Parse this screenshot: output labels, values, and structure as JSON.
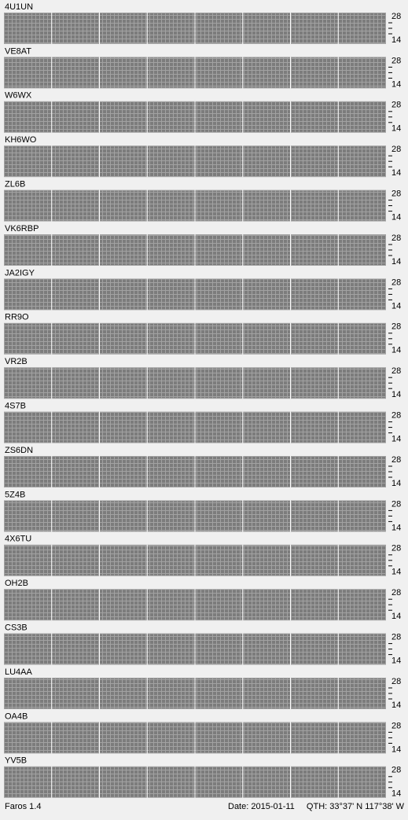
{
  "stations": [
    {
      "name": "4U1UN"
    },
    {
      "name": "VE8AT"
    },
    {
      "name": "W6WX"
    },
    {
      "name": "KH6WO"
    },
    {
      "name": "ZL6B"
    },
    {
      "name": "VK6RBP"
    },
    {
      "name": "JA2IGY"
    },
    {
      "name": "RR9O"
    },
    {
      "name": "VR2B"
    },
    {
      "name": "4S7B"
    },
    {
      "name": "ZS6DN"
    },
    {
      "name": "5Z4B"
    },
    {
      "name": "4X6TU"
    },
    {
      "name": "OH2B"
    },
    {
      "name": "CS3B"
    },
    {
      "name": "LU4AA"
    },
    {
      "name": "OA4B"
    },
    {
      "name": "YV5B"
    }
  ],
  "axis": {
    "top": "28",
    "bottom": "14"
  },
  "footer": {
    "app": "Faros 1.4",
    "date": "Date: 2015-01-11",
    "qth": "QTH: 33°37' N  117°38' W"
  }
}
